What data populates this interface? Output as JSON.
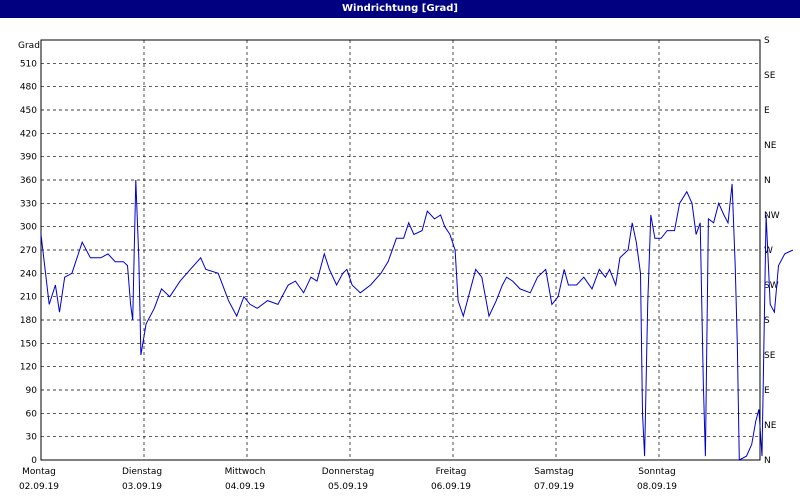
{
  "window": {
    "title": "Windrichtung [Grad]"
  },
  "chart_data": {
    "type": "line",
    "title": "Windrichtung [Grad]",
    "ylabel": "Grad",
    "ylim": [
      0,
      540
    ],
    "y_ticks": [
      0,
      30,
      60,
      90,
      120,
      150,
      180,
      210,
      240,
      270,
      300,
      330,
      360,
      390,
      420,
      450,
      480,
      510
    ],
    "right_axis_ticks": [
      {
        "value": 0,
        "label": "N"
      },
      {
        "value": 45,
        "label": "NE"
      },
      {
        "value": 90,
        "label": "E"
      },
      {
        "value": 135,
        "label": "SE"
      },
      {
        "value": 180,
        "label": "S"
      },
      {
        "value": 225,
        "label": "SW"
      },
      {
        "value": 270,
        "label": "W"
      },
      {
        "value": 315,
        "label": "NW"
      },
      {
        "value": 360,
        "label": "N"
      },
      {
        "value": 405,
        "label": "NE"
      },
      {
        "value": 450,
        "label": "E"
      },
      {
        "value": 495,
        "label": "SE"
      },
      {
        "value": 540,
        "label": "S"
      }
    ],
    "x_ticks": [
      {
        "day": "Montag",
        "date": "02.09.19"
      },
      {
        "day": "Dienstag",
        "date": "03.09.19"
      },
      {
        "day": "Mittwoch",
        "date": "04.09.19"
      },
      {
        "day": "Donnerstag",
        "date": "05.09.19"
      },
      {
        "day": "Freitag",
        "date": "06.09.19"
      },
      {
        "day": "Samstag",
        "date": "07.09.19"
      },
      {
        "day": "Sonntag",
        "date": "08.09.19"
      }
    ],
    "xlim": [
      0,
      7
    ],
    "grid": true,
    "series": [
      {
        "color": "#0000cc",
        "points": [
          [
            0.0,
            290
          ],
          [
            0.08,
            200
          ],
          [
            0.14,
            225
          ],
          [
            0.18,
            190
          ],
          [
            0.23,
            235
          ],
          [
            0.3,
            240
          ],
          [
            0.4,
            280
          ],
          [
            0.48,
            260
          ],
          [
            0.58,
            260
          ],
          [
            0.65,
            265
          ],
          [
            0.72,
            255
          ],
          [
            0.8,
            255
          ],
          [
            0.84,
            250
          ],
          [
            0.87,
            200
          ],
          [
            0.89,
            180
          ],
          [
            0.92,
            360
          ],
          [
            0.95,
            260
          ],
          [
            0.97,
            135
          ],
          [
            1.02,
            175
          ],
          [
            1.1,
            195
          ],
          [
            1.17,
            220
          ],
          [
            1.25,
            210
          ],
          [
            1.35,
            230
          ],
          [
            1.45,
            245
          ],
          [
            1.55,
            260
          ],
          [
            1.6,
            245
          ],
          [
            1.72,
            240
          ],
          [
            1.82,
            205
          ],
          [
            1.9,
            185
          ],
          [
            1.97,
            210
          ],
          [
            2.03,
            200
          ],
          [
            2.1,
            195
          ],
          [
            2.2,
            205
          ],
          [
            2.3,
            200
          ],
          [
            2.4,
            225
          ],
          [
            2.47,
            230
          ],
          [
            2.55,
            215
          ],
          [
            2.62,
            235
          ],
          [
            2.68,
            230
          ],
          [
            2.75,
            265
          ],
          [
            2.8,
            245
          ],
          [
            2.87,
            225
          ],
          [
            2.93,
            240
          ],
          [
            2.97,
            245
          ],
          [
            3.02,
            225
          ],
          [
            3.1,
            215
          ],
          [
            3.2,
            225
          ],
          [
            3.3,
            240
          ],
          [
            3.37,
            255
          ],
          [
            3.45,
            285
          ],
          [
            3.52,
            285
          ],
          [
            3.57,
            305
          ],
          [
            3.62,
            290
          ],
          [
            3.7,
            295
          ],
          [
            3.75,
            320
          ],
          [
            3.82,
            310
          ],
          [
            3.88,
            315
          ],
          [
            3.92,
            300
          ],
          [
            3.97,
            290
          ],
          [
            4.02,
            270
          ],
          [
            4.05,
            205
          ],
          [
            4.1,
            185
          ],
          [
            4.16,
            215
          ],
          [
            4.22,
            245
          ],
          [
            4.28,
            235
          ],
          [
            4.35,
            185
          ],
          [
            4.42,
            205
          ],
          [
            4.48,
            225
          ],
          [
            4.52,
            235
          ],
          [
            4.58,
            230
          ],
          [
            4.65,
            220
          ],
          [
            4.75,
            215
          ],
          [
            4.82,
            235
          ],
          [
            4.9,
            245
          ],
          [
            4.96,
            200
          ],
          [
            5.02,
            210
          ],
          [
            5.08,
            245
          ],
          [
            5.12,
            225
          ],
          [
            5.2,
            225
          ],
          [
            5.27,
            235
          ],
          [
            5.35,
            220
          ],
          [
            5.42,
            245
          ],
          [
            5.48,
            235
          ],
          [
            5.52,
            245
          ],
          [
            5.58,
            225
          ],
          [
            5.62,
            260
          ],
          [
            5.7,
            270
          ],
          [
            5.74,
            305
          ],
          [
            5.78,
            280
          ],
          [
            5.82,
            240
          ],
          [
            5.84,
            60
          ],
          [
            5.86,
            5
          ],
          [
            5.89,
            200
          ],
          [
            5.92,
            315
          ],
          [
            5.96,
            285
          ],
          [
            6.02,
            285
          ],
          [
            6.08,
            295
          ],
          [
            6.15,
            295
          ],
          [
            6.2,
            330
          ],
          [
            6.27,
            345
          ],
          [
            6.32,
            330
          ],
          [
            6.36,
            290
          ],
          [
            6.4,
            305
          ],
          [
            6.43,
            100
          ],
          [
            6.45,
            5
          ],
          [
            6.48,
            310
          ],
          [
            6.53,
            305
          ],
          [
            6.58,
            330
          ],
          [
            6.63,
            315
          ],
          [
            6.67,
            305
          ],
          [
            6.71,
            355
          ],
          [
            6.74,
            250
          ],
          [
            6.76,
            150
          ],
          [
            6.78,
            0
          ],
          [
            6.85,
            5
          ],
          [
            6.9,
            20
          ],
          [
            6.94,
            50
          ],
          [
            6.97,
            65
          ],
          [
            7.0,
            5
          ],
          [
            7.04,
            315
          ],
          [
            7.08,
            200
          ],
          [
            7.12,
            190
          ],
          [
            7.16,
            250
          ],
          [
            7.22,
            265
          ],
          [
            7.3,
            270
          ]
        ]
      }
    ]
  }
}
